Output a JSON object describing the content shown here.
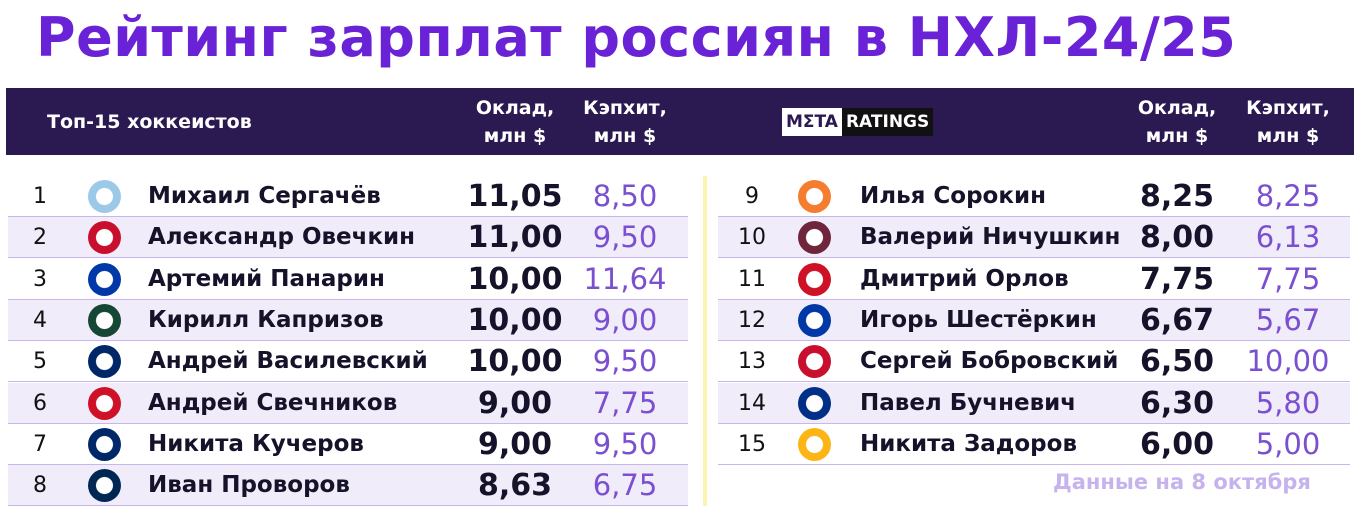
{
  "title": "Рейтинг зарплат россиян в НХЛ-24/25",
  "header": {
    "subtitle": "Топ-15 хоккеистов",
    "salary": [
      "Оклад,",
      "млн $"
    ],
    "caphit": [
      "Кэпхит,",
      "млн $"
    ],
    "brand": [
      "MΣTA",
      "RATINGS"
    ]
  },
  "table": {
    "rows": [
      [
        "1",
        "Михаил Сергачёв",
        "11,05",
        "8,50"
      ],
      [
        "2",
        "Александр Овечкин",
        "11,00",
        "9,50"
      ],
      [
        "3",
        "Артемий Панарин",
        "10,00",
        "11,64"
      ],
      [
        "4",
        "Кирилл Капризов",
        "10,00",
        "9,00"
      ],
      [
        "5",
        "Андрей Василевский",
        "10,00",
        "9,50"
      ],
      [
        "6",
        "Андрей Свечников",
        "9,00",
        "7,75"
      ],
      [
        "7",
        "Никита Кучеров",
        "9,00",
        "9,50"
      ],
      [
        "8",
        "Иван Проворов",
        "8,63",
        "6,75"
      ],
      [
        "9",
        "Илья Сорокин",
        "8,25",
        "8,25"
      ],
      [
        "10",
        "Валерий Ничушкин",
        "8,00",
        "6,13"
      ],
      [
        "11",
        "Дмитрий Орлов",
        "7,75",
        "7,75"
      ],
      [
        "12",
        "Игорь Шестёркин",
        "6,67",
        "5,67"
      ],
      [
        "13",
        "Сергей Бобровский",
        "6,50",
        "10,00"
      ],
      [
        "14",
        "Павел Бучневич",
        "6,30",
        "5,80"
      ],
      [
        "15",
        "Никита Задоров",
        "6,00",
        "5,00"
      ]
    ]
  },
  "footer": {
    "note": "Данные на 8 октября"
  }
}
